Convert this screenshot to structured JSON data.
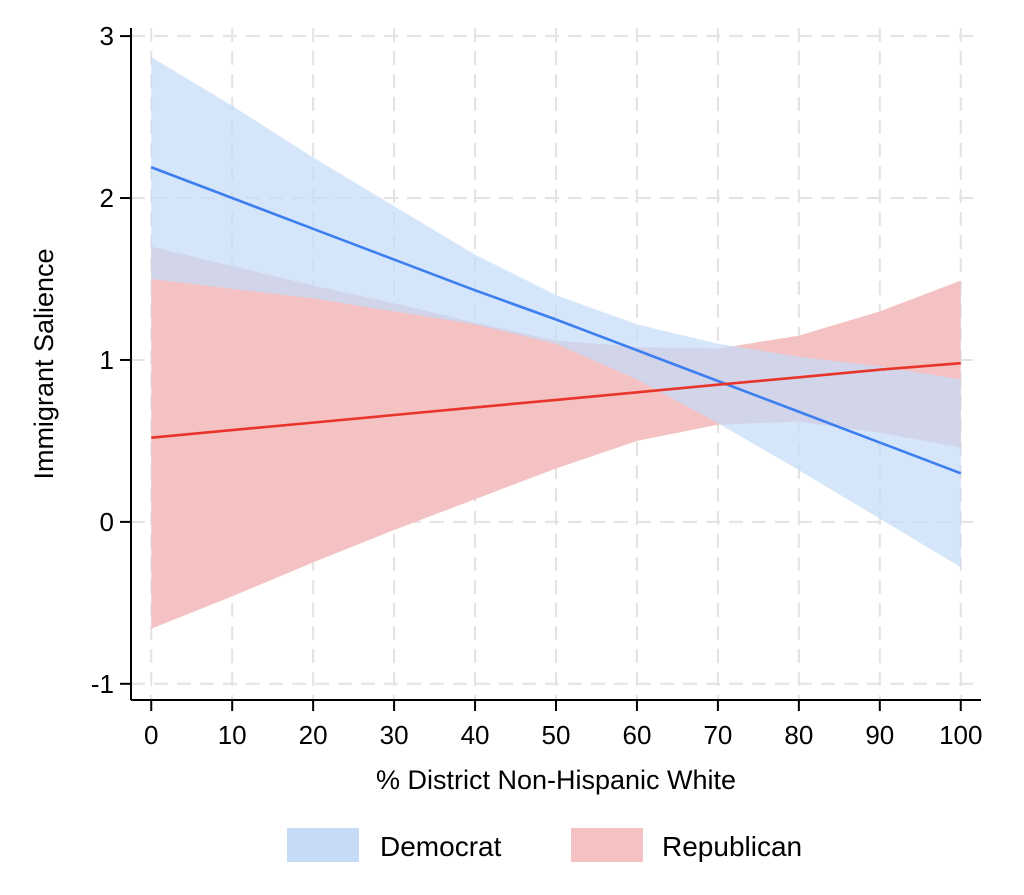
{
  "chart_data": {
    "type": "line",
    "xlabel": "% District Non-Hispanic White",
    "ylabel": "Immigrant Salience",
    "xlim": [
      -2.5,
      102.5
    ],
    "ylim": [
      -1.1,
      3.05
    ],
    "xticks": [
      0,
      10,
      20,
      30,
      40,
      50,
      60,
      70,
      80,
      90,
      100
    ],
    "yticks": [
      -1,
      0,
      1,
      2,
      3
    ],
    "xtick_labels": [
      "0",
      "10",
      "20",
      "30",
      "40",
      "50",
      "60",
      "70",
      "80",
      "90",
      "100"
    ],
    "ytick_labels": [
      "-1",
      "0",
      "1",
      "2",
      "3"
    ],
    "grid": true,
    "legend_position": "bottom",
    "series": [
      {
        "name": "Democrat",
        "line_color": "#3d7ff0",
        "band_color": "#c5dbf8",
        "x": [
          0,
          10,
          20,
          30,
          40,
          50,
          60,
          70,
          80,
          90,
          100
        ],
        "values": [
          2.19,
          2.0,
          1.81,
          1.62,
          1.43,
          1.25,
          1.06,
          0.87,
          0.68,
          0.49,
          0.3
        ],
        "lower": [
          1.5,
          1.44,
          1.38,
          1.3,
          1.22,
          1.1,
          0.88,
          0.61,
          0.32,
          0.02,
          -0.28
        ],
        "upper": [
          2.87,
          2.57,
          2.25,
          1.95,
          1.65,
          1.4,
          1.22,
          1.1,
          1.02,
          0.96,
          0.88
        ]
      },
      {
        "name": "Republican",
        "line_color": "#e8342b",
        "band_color": "#f4c2c2",
        "x": [
          0,
          10,
          20,
          30,
          40,
          50,
          60,
          70,
          80,
          90,
          100
        ],
        "values": [
          0.52,
          0.567,
          0.613,
          0.66,
          0.707,
          0.753,
          0.8,
          0.847,
          0.893,
          0.94,
          0.98
        ],
        "lower": [
          -0.66,
          -0.46,
          -0.25,
          -0.05,
          0.14,
          0.33,
          0.5,
          0.6,
          0.62,
          0.55,
          0.46
        ],
        "upper": [
          1.7,
          1.58,
          1.46,
          1.35,
          1.23,
          1.12,
          1.08,
          1.07,
          1.15,
          1.3,
          1.49
        ]
      }
    ]
  }
}
